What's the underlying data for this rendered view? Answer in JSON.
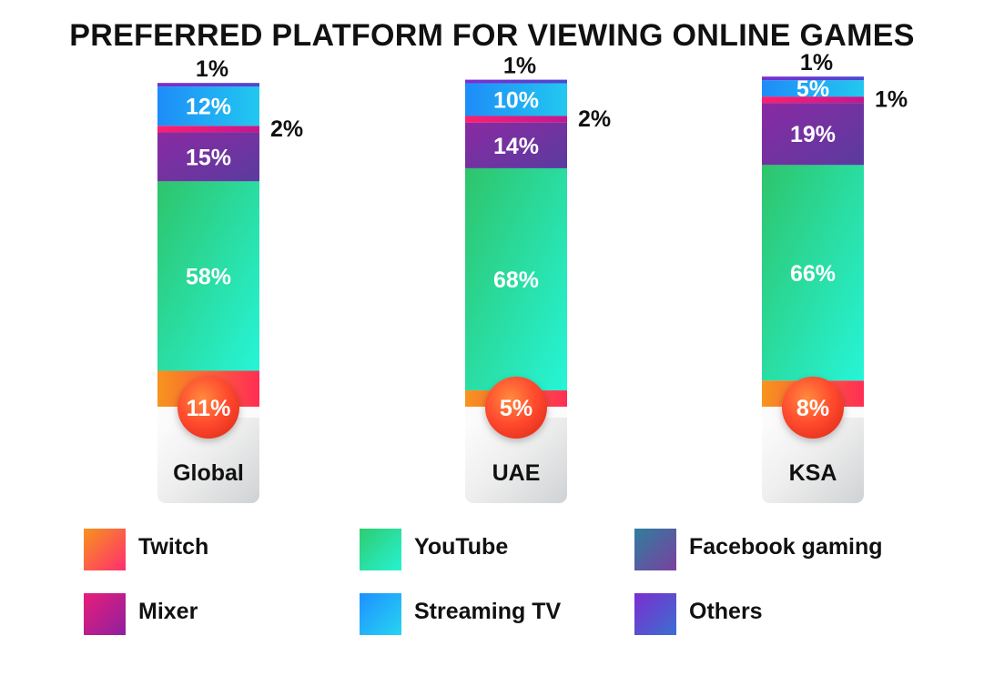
{
  "title": "PREFERRED PLATFORM FOR VIEWING ONLINE GAMES",
  "chart_data": {
    "type": "bar",
    "stacked": true,
    "categories": [
      "Global",
      "UAE",
      "KSA"
    ],
    "series": [
      {
        "name": "Twitch",
        "values": [
          11,
          5,
          8
        ],
        "labels": [
          "11%",
          "5%",
          "8%"
        ]
      },
      {
        "name": "YouTube",
        "values": [
          58,
          68,
          66
        ],
        "labels": [
          "58%",
          "68%",
          "66%"
        ]
      },
      {
        "name": "Facebook gaming",
        "values": [
          15,
          14,
          19
        ],
        "labels": [
          "15%",
          "14%",
          "19%"
        ]
      },
      {
        "name": "Mixer",
        "values": [
          2,
          2,
          1
        ],
        "labels": [
          "2%",
          "2%",
          "1%"
        ]
      },
      {
        "name": "Streaming TV",
        "values": [
          12,
          10,
          5
        ],
        "labels": [
          "12%",
          "10%",
          "5%"
        ]
      },
      {
        "name": "Others",
        "values": [
          1,
          1,
          1
        ],
        "labels": [
          "1%",
          "1%",
          "1%"
        ]
      }
    ],
    "legend_position": "bottom",
    "grid": false
  },
  "legend": [
    {
      "label": "Twitch",
      "color": "#fd5a4a"
    },
    {
      "label": "YouTube",
      "color": "#2ee0a2"
    },
    {
      "label": "Facebook gaming",
      "color": "#565c9f"
    },
    {
      "label": "Mixer",
      "color": "#c01e8c"
    },
    {
      "label": "Streaming TV",
      "color": "#1fb2f8"
    },
    {
      "label": "Others",
      "color": "#5a4ed0"
    }
  ]
}
